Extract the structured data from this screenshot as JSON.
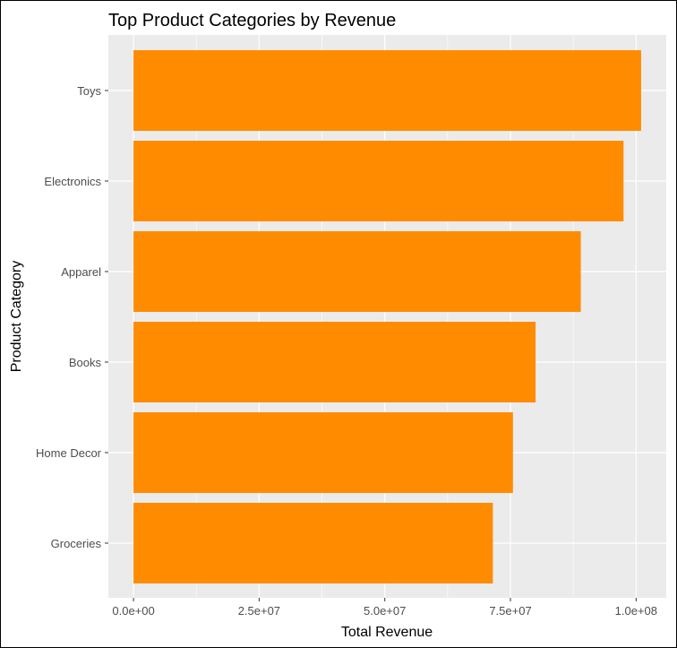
{
  "chart_data": {
    "type": "bar",
    "orientation": "horizontal",
    "title": "Top Product Categories by Revenue",
    "xlabel": "Total Revenue",
    "ylabel": "Product Category",
    "categories": [
      "Toys",
      "Electronics",
      "Apparel",
      "Books",
      "Home Decor",
      "Groceries"
    ],
    "values": [
      101000000,
      97500000,
      89000000,
      80000000,
      75500000,
      71500000
    ],
    "xlim": [
      -5000000,
      106000000
    ],
    "xticks": [
      0,
      25000000,
      50000000,
      75000000,
      100000000
    ],
    "xtick_labels": [
      "0.0e+00",
      "2.5e+07",
      "5.0e+07",
      "7.5e+07",
      "1.0e+08"
    ],
    "bar_color": "#FF8C00",
    "panel_background": "#EBEBEB",
    "grid_color": "#FFFFFF",
    "grid": true,
    "legend": "none"
  }
}
